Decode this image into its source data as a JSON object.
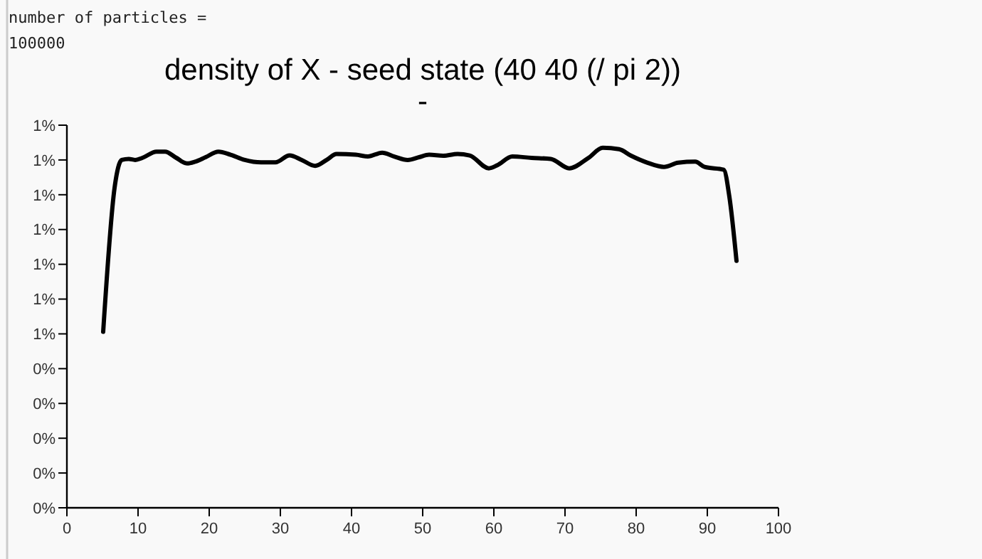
{
  "chart_data": {
    "type": "line",
    "title": "density of X - seed state (40 40 (/ pi 2))",
    "subtitle": "-",
    "annotations": [
      "number of particles =",
      "100000"
    ],
    "x": [
      5.1,
      6.7,
      7.7,
      8.7,
      9.6,
      10.6,
      12.6,
      13.8,
      15.3,
      16.9,
      18,
      19.5,
      21.3,
      23,
      25,
      27.3,
      29.3,
      31.3,
      33,
      34.9,
      36.5,
      37.9,
      40.6,
      42.3,
      44.3,
      46,
      47.9,
      49.5,
      50.9,
      52.9,
      54.9,
      56.6,
      59.3,
      60.5,
      62.6,
      65.3,
      68,
      70.6,
      73.3,
      75.3,
      77.6,
      79.3,
      81.6,
      83.9,
      85.9,
      88.3,
      89.6,
      92.3,
      93.1,
      94.1
    ],
    "series": [
      {
        "color": "#000000",
        "values": [
          0.506,
          0.92,
          1.0,
          1.003,
          1.0,
          1.006,
          1.024,
          1.024,
          1.007,
          0.99,
          0.995,
          1.008,
          1.024,
          1.015,
          1.0,
          0.993,
          0.993,
          1.013,
          1.0,
          0.983,
          1.0,
          1.017,
          1.015,
          1.01,
          1.021,
          1.01,
          1.0,
          1.008,
          1.015,
          1.012,
          1.017,
          1.013,
          0.976,
          0.985,
          1.01,
          1.006,
          1.003,
          0.976,
          1.006,
          1.035,
          1.031,
          1.012,
          0.992,
          0.98,
          0.992,
          0.995,
          0.98,
          0.972,
          0.894,
          0.71
        ]
      }
    ],
    "xlim": [
      0,
      100
    ],
    "xticks": [
      0,
      10,
      20,
      30,
      40,
      50,
      60,
      70,
      80,
      90,
      100
    ],
    "ylim": [
      0,
      1.1
    ],
    "yticks": [
      {
        "value": 0,
        "label": "0%"
      },
      {
        "value": 0.1,
        "label": "0%"
      },
      {
        "value": 0.2,
        "label": "0%"
      },
      {
        "value": 0.3,
        "label": "0%"
      },
      {
        "value": 0.4,
        "label": "0%"
      },
      {
        "value": 0.5,
        "label": "1%"
      },
      {
        "value": 0.6,
        "label": "1%"
      },
      {
        "value": 0.7,
        "label": "1%"
      },
      {
        "value": 0.8,
        "label": "1%"
      },
      {
        "value": 0.9,
        "label": "1%"
      },
      {
        "value": 1.0,
        "label": "1%"
      },
      {
        "value": 1.1,
        "label": "1%"
      }
    ],
    "grid": false,
    "marker": "none",
    "line_style": "solid"
  }
}
